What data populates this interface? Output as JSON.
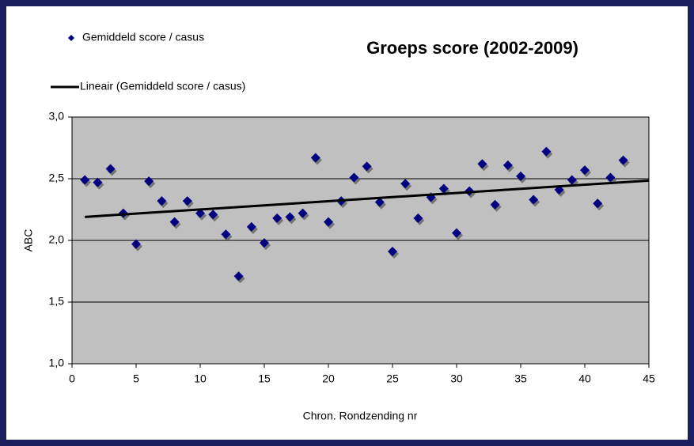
{
  "chart_data": {
    "type": "scatter",
    "title": "Groeps score (2002-2009)",
    "xlabel": "Chron. Rondzending nr",
    "ylabel": "ABC",
    "x": [
      1,
      2,
      3,
      4,
      5,
      6,
      7,
      8,
      9,
      10,
      11,
      12,
      13,
      14,
      15,
      16,
      17,
      18,
      19,
      20,
      21,
      22,
      23,
      24,
      25,
      26,
      27,
      28,
      29,
      30,
      31,
      32,
      33,
      34,
      35,
      36,
      37,
      38,
      39,
      40,
      41,
      42,
      43
    ],
    "series": [
      {
        "name": "Gemiddeld score / casus",
        "color": "#000080",
        "values": [
          2.49,
          2.47,
          2.58,
          2.22,
          1.97,
          2.48,
          2.32,
          2.15,
          2.32,
          2.22,
          2.21,
          2.05,
          1.71,
          2.11,
          1.98,
          2.18,
          2.19,
          2.22,
          2.67,
          2.15,
          2.32,
          2.51,
          2.6,
          2.31,
          1.91,
          2.46,
          2.18,
          2.35,
          2.42,
          2.06,
          2.4,
          2.62,
          2.29,
          2.61,
          2.52,
          2.33,
          2.72,
          2.41,
          2.49,
          2.57,
          2.3,
          2.51,
          2.65
        ]
      }
    ],
    "trendline": {
      "name": "Lineair (Gemiddeld score / casus)",
      "color": "#000000"
    },
    "xlim": [
      0,
      45
    ],
    "xticks": [
      0,
      5,
      10,
      15,
      20,
      25,
      30,
      35,
      40,
      45
    ],
    "ylim": [
      1,
      3
    ],
    "yticks": [
      {
        "value": 1,
        "label": "1,0"
      },
      {
        "value": 1.5,
        "label": "1,5"
      },
      {
        "value": 2,
        "label": "2,0"
      },
      {
        "value": 2.5,
        "label": "2,5"
      },
      {
        "value": 3,
        "label": "3,0"
      }
    ],
    "grid": true
  }
}
